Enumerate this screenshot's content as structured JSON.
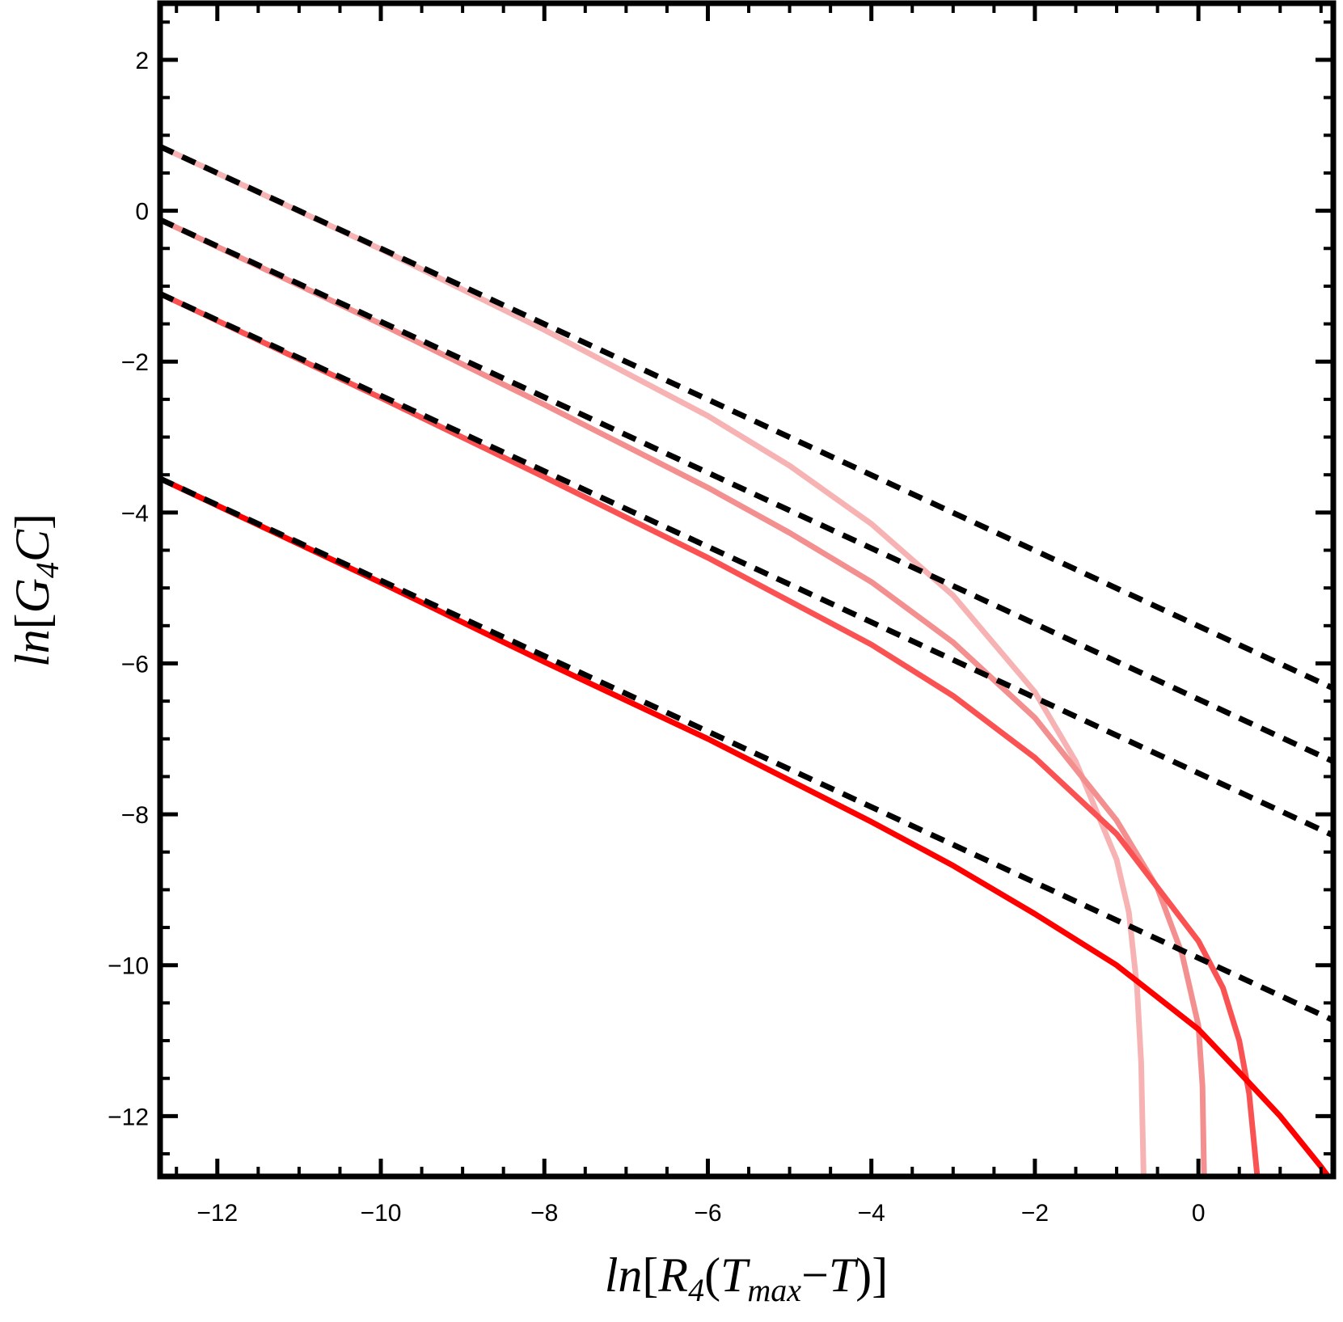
{
  "chart_data": {
    "type": "line",
    "xlabel": "ln[R4(Tmax−T)]",
    "ylabel": "ln[G4C]",
    "xlabel_parts": {
      "pre": "ln",
      "lb": "[",
      "r": "R",
      "r_sub": "4",
      "lp": "(",
      "t": "T",
      "t_sub": "max",
      "minus": "−",
      "t2": "T",
      "rp": ")",
      "rb": "]"
    },
    "ylabel_parts": {
      "pre": "ln",
      "lb": "[",
      "g": "G",
      "g_sub": "4",
      "c": "C",
      "rb": "]"
    },
    "xlim": [
      -12.7,
      1.65
    ],
    "ylim": [
      -12.8,
      2.75
    ],
    "xticks": [
      -12,
      -10,
      -8,
      -6,
      -4,
      -2,
      0
    ],
    "yticks": [
      2,
      0,
      -2,
      -4,
      -6,
      -8,
      -10,
      -12
    ],
    "xtick_labels": [
      "−12",
      "−10",
      "−8",
      "−6",
      "−4",
      "−2",
      "0"
    ],
    "ytick_labels": [
      "2",
      "0",
      "−2",
      "−4",
      "−6",
      "−8",
      "−10",
      "−12"
    ],
    "grid": false,
    "frame": "box",
    "series": [
      {
        "style": "solid",
        "color": "#f7b3b3",
        "values": [
          [
            -12.7,
            0.85
          ],
          [
            -10,
            -0.51
          ],
          [
            -8,
            -1.58
          ],
          [
            -6,
            -2.72
          ],
          [
            -5,
            -3.38
          ],
          [
            -4,
            -4.15
          ],
          [
            -3,
            -5.1
          ],
          [
            -2,
            -6.38
          ],
          [
            -1.5,
            -7.3
          ],
          [
            -1,
            -8.6
          ],
          [
            -0.85,
            -9.3
          ],
          [
            -0.75,
            -10.3
          ],
          [
            -0.7,
            -11.3
          ],
          [
            -0.67,
            -12.8
          ]
        ]
      },
      {
        "style": "solid",
        "color": "#f48f8f",
        "values": [
          [
            -12.7,
            -0.12
          ],
          [
            -10,
            -1.5
          ],
          [
            -8,
            -2.57
          ],
          [
            -6,
            -3.67
          ],
          [
            -5,
            -4.27
          ],
          [
            -4,
            -4.92
          ],
          [
            -3,
            -5.72
          ],
          [
            -2,
            -6.72
          ],
          [
            -1,
            -8.08
          ],
          [
            -0.5,
            -8.98
          ],
          [
            -0.2,
            -9.85
          ],
          [
            0,
            -10.8
          ],
          [
            0.05,
            -11.6
          ],
          [
            0.07,
            -12.8
          ]
        ]
      },
      {
        "style": "solid",
        "color": "#fa5252",
        "values": [
          [
            -12.7,
            -1.1
          ],
          [
            -10,
            -2.48
          ],
          [
            -8,
            -3.53
          ],
          [
            -6,
            -4.6
          ],
          [
            -4,
            -5.75
          ],
          [
            -3,
            -6.43
          ],
          [
            -2,
            -7.25
          ],
          [
            -1,
            -8.26
          ],
          [
            0,
            -9.68
          ],
          [
            0.3,
            -10.3
          ],
          [
            0.5,
            -11.0
          ],
          [
            0.62,
            -11.7
          ],
          [
            0.72,
            -12.8
          ]
        ]
      },
      {
        "style": "solid",
        "color": "#ff0000",
        "values": [
          [
            -12.7,
            -3.55
          ],
          [
            -10,
            -4.93
          ],
          [
            -8,
            -5.98
          ],
          [
            -6,
            -7.0
          ],
          [
            -4,
            -8.1
          ],
          [
            -3,
            -8.68
          ],
          [
            -2,
            -9.32
          ],
          [
            -1,
            -10.0
          ],
          [
            0,
            -10.85
          ],
          [
            0.5,
            -11.42
          ],
          [
            1,
            -12.0
          ],
          [
            1.5,
            -12.67
          ],
          [
            1.62,
            -12.85
          ]
        ]
      },
      {
        "style": "dashed",
        "color": "#000000",
        "values": [
          [
            -12.7,
            0.85
          ],
          [
            1.65,
            -6.33
          ]
        ]
      },
      {
        "style": "dashed",
        "color": "#000000",
        "values": [
          [
            -12.7,
            -0.12
          ],
          [
            1.65,
            -7.3
          ]
        ]
      },
      {
        "style": "dashed",
        "color": "#000000",
        "values": [
          [
            -12.7,
            -1.1
          ],
          [
            1.65,
            -8.28
          ]
        ]
      },
      {
        "style": "dashed",
        "color": "#000000",
        "values": [
          [
            -12.7,
            -3.55
          ],
          [
            1.65,
            -10.73
          ]
        ]
      }
    ]
  }
}
